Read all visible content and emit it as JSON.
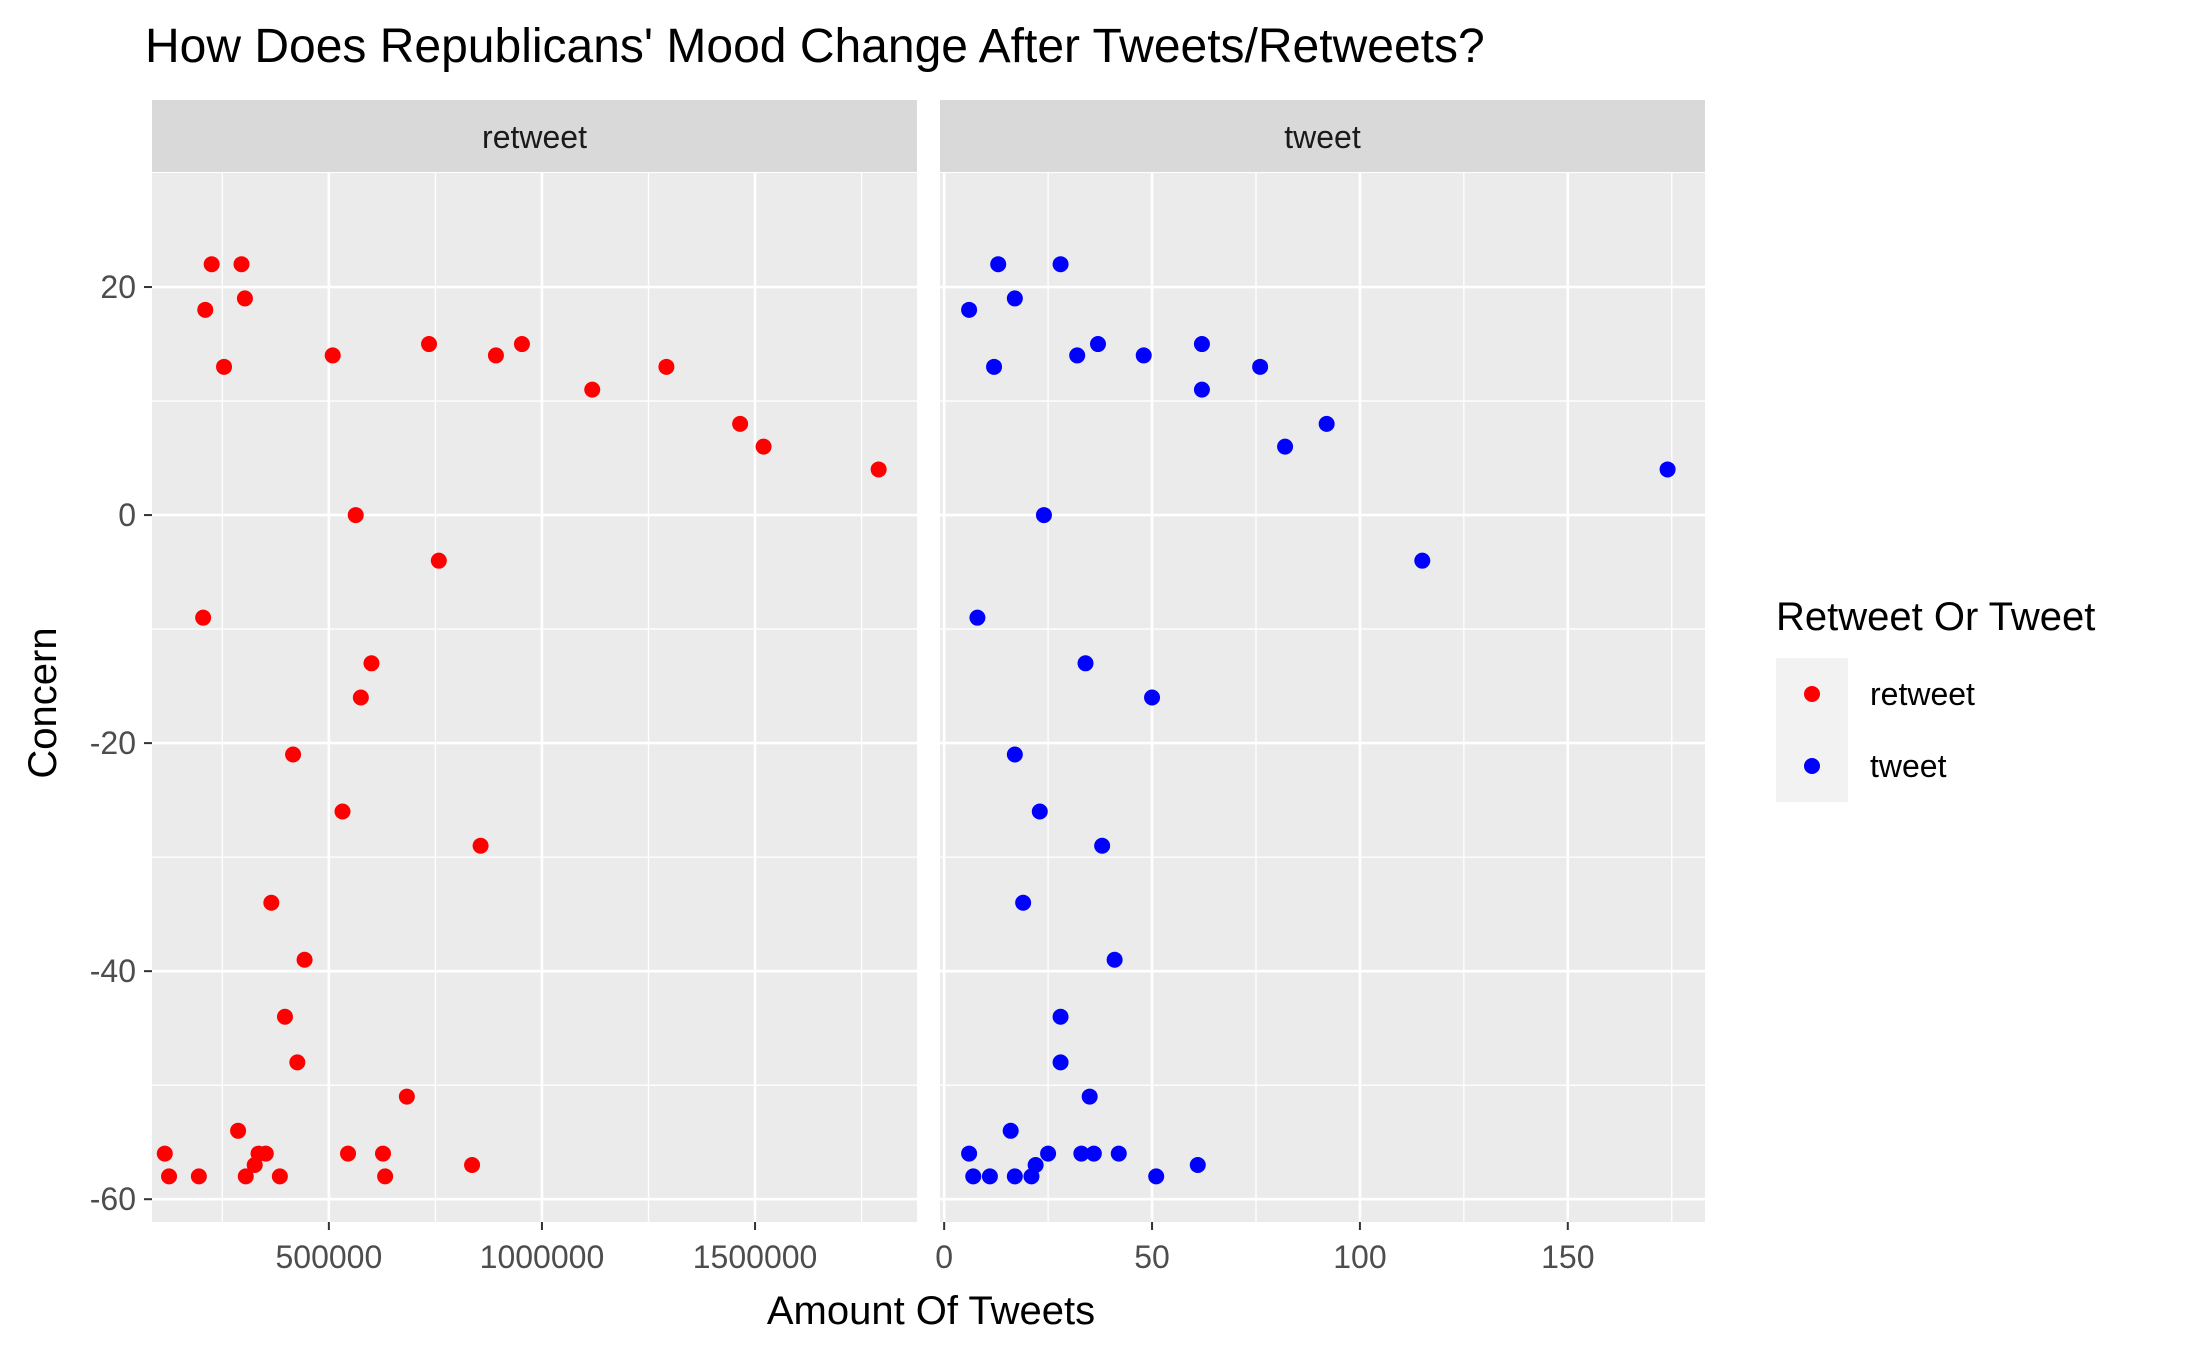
{
  "chart_data": {
    "type": "scatter",
    "title": "How Does Republicans' Mood Change After Tweets/Retweets?",
    "xlabel": "Amount Of Tweets",
    "ylabel": "Concern",
    "legend": {
      "title": "Retweet Or Tweet",
      "position": "right",
      "entries": [
        {
          "label": "retweet",
          "color": "#ff0000"
        },
        {
          "label": "tweet",
          "color": "#0000ff"
        }
      ]
    },
    "y": {
      "lim": [
        -62,
        30
      ],
      "ticks": [
        20,
        0,
        -20,
        -40,
        -60
      ],
      "tick_labels": [
        "20",
        "0",
        "-20",
        "-40",
        "-60"
      ],
      "minor_ticks": [
        10,
        -10,
        -30,
        -50
      ]
    },
    "grid": true,
    "facets": [
      {
        "name": "retweet",
        "strip_label": "retweet",
        "color": "#ff0000",
        "xlim": [
          85000,
          1880000
        ],
        "xticks": [
          500000,
          1000000,
          1500000
        ],
        "xtick_labels": [
          "500000",
          "1000000",
          "1500000"
        ],
        "x_minor": [
          250000,
          750000,
          1250000,
          1750000
        ],
        "points": [
          [
            225000,
            22
          ],
          [
            295000,
            22
          ],
          [
            303000,
            19
          ],
          [
            210000,
            18
          ],
          [
            254000,
            13
          ],
          [
            509000,
            14
          ],
          [
            735000,
            15
          ],
          [
            953000,
            15
          ],
          [
            892000,
            14
          ],
          [
            1118000,
            11
          ],
          [
            1292000,
            13
          ],
          [
            1465000,
            8
          ],
          [
            1520000,
            6
          ],
          [
            1790000,
            4
          ],
          [
            563000,
            0
          ],
          [
            758000,
            -4
          ],
          [
            205000,
            -9
          ],
          [
            600000,
            -13
          ],
          [
            575000,
            -16
          ],
          [
            416000,
            -21
          ],
          [
            532000,
            -26
          ],
          [
            856000,
            -29
          ],
          [
            365000,
            -34
          ],
          [
            443000,
            -39
          ],
          [
            397000,
            -44
          ],
          [
            426000,
            -48
          ],
          [
            683000,
            -51
          ],
          [
            287000,
            -54
          ],
          [
            115000,
            -56
          ],
          [
            335000,
            -56
          ],
          [
            352000,
            -56
          ],
          [
            545000,
            -56
          ],
          [
            627000,
            -56
          ],
          [
            326000,
            -57
          ],
          [
            836000,
            -57
          ],
          [
            125000,
            -58
          ],
          [
            195000,
            -58
          ],
          [
            305000,
            -58
          ],
          [
            385000,
            -58
          ],
          [
            632000,
            -58
          ]
        ]
      },
      {
        "name": "tweet",
        "strip_label": "tweet",
        "color": "#0000ff",
        "xlim": [
          -1,
          183
        ],
        "xticks": [
          0,
          50,
          100,
          150
        ],
        "xtick_labels": [
          "0",
          "50",
          "100",
          "150"
        ],
        "x_minor": [
          25,
          75,
          125,
          175
        ],
        "points": [
          [
            13,
            22
          ],
          [
            28,
            22
          ],
          [
            17,
            19
          ],
          [
            6,
            18
          ],
          [
            12,
            13
          ],
          [
            32,
            14
          ],
          [
            37,
            15
          ],
          [
            48,
            14
          ],
          [
            62,
            15
          ],
          [
            62,
            11
          ],
          [
            76,
            13
          ],
          [
            92,
            8
          ],
          [
            82,
            6
          ],
          [
            174,
            4
          ],
          [
            24,
            0
          ],
          [
            115,
            -4
          ],
          [
            8,
            -9
          ],
          [
            34,
            -13
          ],
          [
            50,
            -16
          ],
          [
            17,
            -21
          ],
          [
            23,
            -26
          ],
          [
            38,
            -29
          ],
          [
            19,
            -34
          ],
          [
            41,
            -39
          ],
          [
            28,
            -44
          ],
          [
            28,
            -48
          ],
          [
            35,
            -51
          ],
          [
            16,
            -54
          ],
          [
            6,
            -56
          ],
          [
            25,
            -56
          ],
          [
            33,
            -56
          ],
          [
            36,
            -56
          ],
          [
            42,
            -56
          ],
          [
            22,
            -57
          ],
          [
            61,
            -57
          ],
          [
            7,
            -58
          ],
          [
            11,
            -58
          ],
          [
            17,
            -58
          ],
          [
            21,
            -58
          ],
          [
            51,
            -58
          ]
        ]
      }
    ]
  }
}
